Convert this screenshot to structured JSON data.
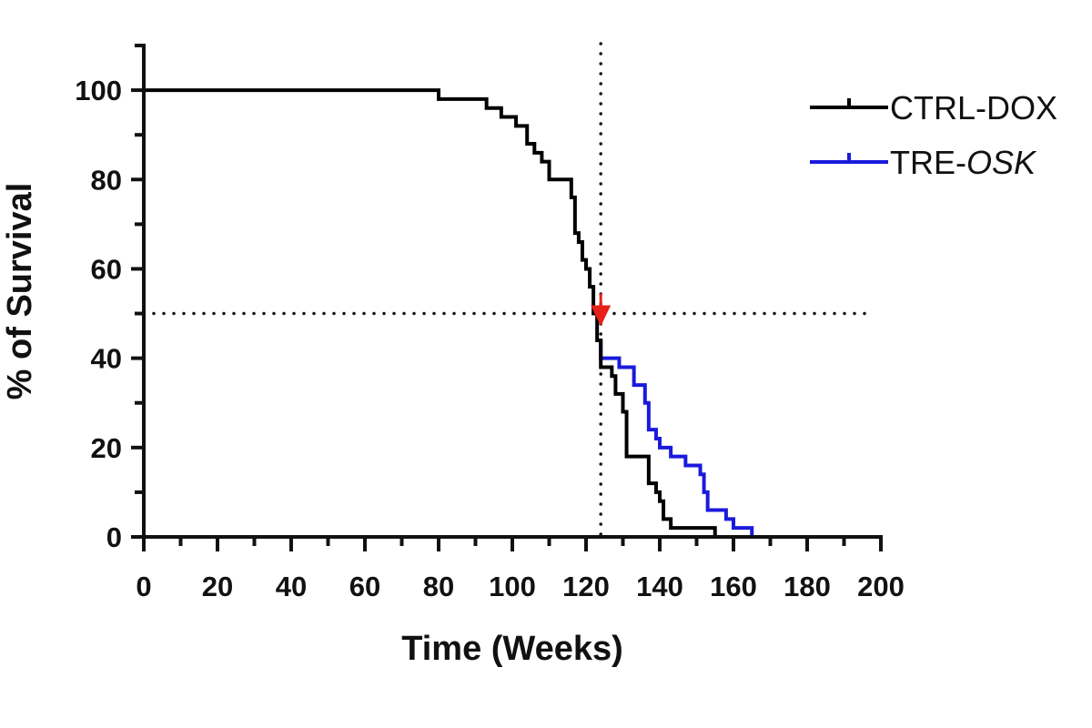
{
  "chart_data": {
    "type": "line",
    "title": "",
    "xlabel": "Time (Weeks)",
    "ylabel": "% of Survival",
    "xlim": [
      0,
      200
    ],
    "ylim": [
      0,
      110
    ],
    "xticks": [
      0,
      20,
      40,
      60,
      80,
      100,
      120,
      140,
      160,
      180,
      200
    ],
    "yticks": [
      0,
      20,
      40,
      60,
      80,
      100
    ],
    "grid": false,
    "legend_position": "top-right",
    "reference_lines": {
      "x": 124,
      "y": 50,
      "style": "dotted"
    },
    "marker": {
      "x": 124,
      "y": 50,
      "color": "#e8201a",
      "shape": "down-arrow"
    },
    "series": [
      {
        "name": "CTRL-DOX",
        "color": "#000000",
        "step": true,
        "points": [
          [
            0,
            100
          ],
          [
            80,
            100
          ],
          [
            80,
            98
          ],
          [
            93,
            98
          ],
          [
            93,
            96
          ],
          [
            97,
            96
          ],
          [
            97,
            94
          ],
          [
            101,
            94
          ],
          [
            101,
            92
          ],
          [
            104,
            92
          ],
          [
            104,
            88
          ],
          [
            106,
            88
          ],
          [
            106,
            86
          ],
          [
            108,
            86
          ],
          [
            108,
            84
          ],
          [
            110,
            84
          ],
          [
            110,
            80
          ],
          [
            116,
            80
          ],
          [
            116,
            76
          ],
          [
            117,
            76
          ],
          [
            117,
            68
          ],
          [
            118,
            68
          ],
          [
            118,
            66
          ],
          [
            119,
            66
          ],
          [
            119,
            62
          ],
          [
            120,
            62
          ],
          [
            120,
            60
          ],
          [
            121,
            60
          ],
          [
            121,
            56
          ],
          [
            122,
            56
          ],
          [
            122,
            50
          ],
          [
            123,
            50
          ],
          [
            123,
            44
          ],
          [
            124,
            44
          ],
          [
            124,
            38
          ],
          [
            127,
            38
          ],
          [
            127,
            36
          ],
          [
            128,
            36
          ],
          [
            128,
            32
          ],
          [
            130,
            32
          ],
          [
            130,
            28
          ],
          [
            131,
            28
          ],
          [
            131,
            18
          ],
          [
            137,
            18
          ],
          [
            137,
            12
          ],
          [
            139,
            12
          ],
          [
            139,
            10
          ],
          [
            140,
            10
          ],
          [
            140,
            8
          ],
          [
            141,
            8
          ],
          [
            141,
            4
          ],
          [
            143,
            4
          ],
          [
            143,
            2
          ],
          [
            155,
            2
          ],
          [
            155,
            0
          ],
          [
            157,
            0
          ]
        ]
      },
      {
        "name": "TRE-OSK",
        "color": "#1a1adc",
        "step": true,
        "points": [
          [
            124,
            44
          ],
          [
            124,
            40
          ],
          [
            129,
            40
          ],
          [
            129,
            38
          ],
          [
            133,
            38
          ],
          [
            133,
            34
          ],
          [
            136,
            34
          ],
          [
            136,
            30
          ],
          [
            137,
            30
          ],
          [
            137,
            24
          ],
          [
            139,
            24
          ],
          [
            139,
            22
          ],
          [
            140,
            22
          ],
          [
            140,
            20
          ],
          [
            143,
            20
          ],
          [
            143,
            18
          ],
          [
            147,
            18
          ],
          [
            147,
            16
          ],
          [
            151,
            16
          ],
          [
            151,
            14
          ],
          [
            152,
            14
          ],
          [
            152,
            10
          ],
          [
            153,
            10
          ],
          [
            153,
            6
          ],
          [
            158,
            6
          ],
          [
            158,
            4
          ],
          [
            160,
            4
          ],
          [
            160,
            2
          ],
          [
            165,
            2
          ],
          [
            165,
            0
          ]
        ]
      }
    ]
  }
}
